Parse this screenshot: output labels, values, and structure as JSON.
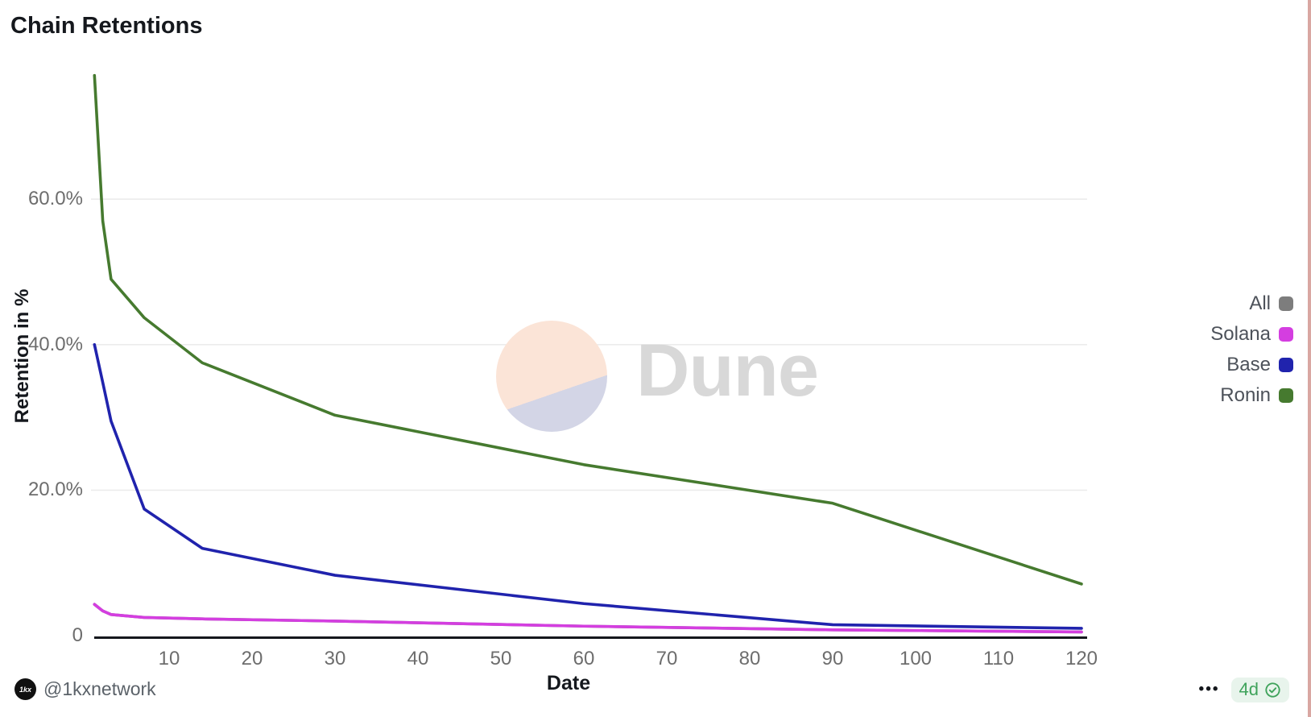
{
  "title": "Chain Retentions",
  "watermark": {
    "brand": "Dune"
  },
  "legend": {
    "items": [
      {
        "label": "All",
        "color": "#7d7d7d"
      },
      {
        "label": "Solana",
        "color": "#d43ee0"
      },
      {
        "label": "Base",
        "color": "#2023ad"
      },
      {
        "label": "Ronin",
        "color": "#467a2f"
      }
    ]
  },
  "footer": {
    "handle": "@1kxnetwork",
    "avatar_text": "1kx",
    "menu": "•••",
    "age_badge": "4d"
  },
  "chart_data": {
    "type": "line",
    "title": "Chain Retentions",
    "xlabel": "Date",
    "ylabel": "Retention in %",
    "x_days": [
      1,
      2,
      3,
      7,
      14,
      30,
      60,
      90,
      120
    ],
    "xticks": [
      10,
      20,
      30,
      40,
      50,
      60,
      70,
      80,
      90,
      100,
      110,
      120
    ],
    "yticks": [
      {
        "value": 0,
        "label": "0"
      },
      {
        "value": 20,
        "label": "20.0%"
      },
      {
        "value": 40,
        "label": "40.0%"
      },
      {
        "value": 60,
        "label": "60.0%"
      }
    ],
    "xlim": [
      0,
      122
    ],
    "ylim": [
      0,
      80
    ],
    "grid": "horizontal",
    "legend_position": "right",
    "series": [
      {
        "name": "All",
        "color": "#7d7d7d",
        "values": [
          4.3,
          3.4,
          2.9,
          2.5,
          2.3,
          2.0,
          1.3,
          0.8,
          0.5
        ]
      },
      {
        "name": "Solana",
        "color": "#d43ee0",
        "values": [
          4.3,
          3.4,
          2.9,
          2.5,
          2.3,
          2.0,
          1.3,
          0.8,
          0.5
        ]
      },
      {
        "name": "Base",
        "color": "#2023ad",
        "values": [
          40.0,
          34.8,
          29.5,
          17.4,
          12.0,
          8.3,
          4.4,
          1.5,
          1.0
        ]
      },
      {
        "name": "Ronin",
        "color": "#467a2f",
        "values": [
          77.0,
          57.0,
          49.0,
          43.7,
          37.5,
          30.3,
          23.5,
          18.2,
          7.1
        ]
      }
    ]
  }
}
